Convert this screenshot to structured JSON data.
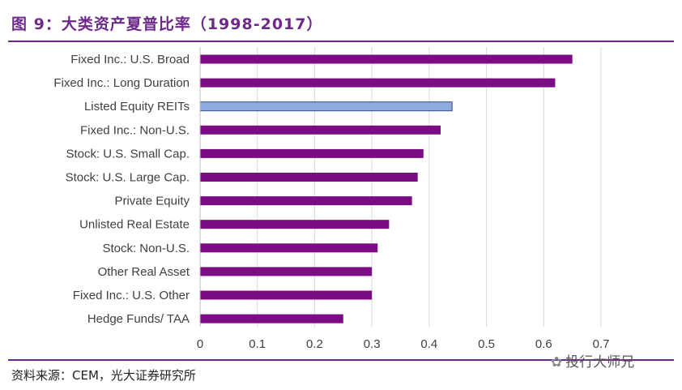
{
  "header": {
    "title": "图 9：大类资产夏普比率（1998-2017）"
  },
  "footer": {
    "source": "资料来源：CEM，光大证券研究所",
    "watermark": "投行大师兄"
  },
  "colors": {
    "bar": "#7b0c84",
    "highlight": "#8faadc",
    "highlight_border": "#2f4f7f",
    "grid": "#d9d9d9",
    "title": "#6e2a8a"
  },
  "chart_data": {
    "type": "bar",
    "orientation": "horizontal",
    "categories": [
      "Fixed Inc.: U.S. Broad",
      "Fixed Inc.: Long Duration",
      "Listed Equity REITs",
      "Fixed Inc.: Non-U.S.",
      "Stock: U.S. Small Cap.",
      "Stock: U.S. Large Cap.",
      "Private Equity",
      "Unlisted Real Estate",
      "Stock: Non-U.S.",
      "Other Real Asset",
      "Fixed Inc.: U.S. Other",
      "Hedge Funds/ TAA"
    ],
    "values": [
      0.65,
      0.62,
      0.44,
      0.42,
      0.39,
      0.38,
      0.37,
      0.33,
      0.31,
      0.3,
      0.3,
      0.25
    ],
    "highlight": [
      "Listed Equity REITs"
    ],
    "xlim": [
      0,
      0.7
    ],
    "xticks": [
      "0",
      "0.1",
      "0.2",
      "0.3",
      "0.4",
      "0.5",
      "0.6",
      "0.7"
    ],
    "grid": true,
    "legend": "none"
  }
}
